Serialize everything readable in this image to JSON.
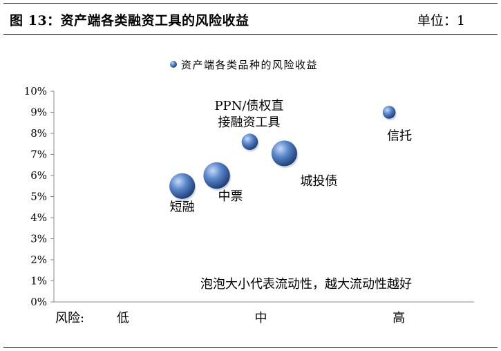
{
  "figure": {
    "title": "图 13：资产端各类融资工具的风险收益",
    "unit": "单位：1"
  },
  "chart_data": {
    "type": "scatter",
    "bubble": true,
    "legend": {
      "entries": [
        "资产端各类品种的风险收益"
      ],
      "placement": "top-center"
    },
    "y_ticks": [
      "0%",
      "1%",
      "2%",
      "3%",
      "4%",
      "5%",
      "6%",
      "7%",
      "8%",
      "9%",
      "10%"
    ],
    "ylim": [
      0,
      10
    ],
    "x_axis_label": "风险:",
    "x_ticks": [
      {
        "label": "低",
        "x": 1
      },
      {
        "label": "中",
        "x": 2
      },
      {
        "label": "高",
        "x": 3
      }
    ],
    "xlim": [
      0.5,
      3.5
    ],
    "grid": false,
    "annotation": "泡泡大小代表流动性，越大流动性越好",
    "points": [
      {
        "name": "短融",
        "x": 1.43,
        "y": 5.5,
        "size": 3.0
      },
      {
        "name": "中票",
        "x": 1.68,
        "y": 6.0,
        "size": 3.1
      },
      {
        "name": "PPN/债权直接融资工具",
        "label_lines": [
          "PPN/债权直",
          "接融资工具"
        ],
        "x": 1.92,
        "y": 7.6,
        "size": 1.9
      },
      {
        "name": "城投债",
        "x": 2.17,
        "y": 7.05,
        "size": 3.0
      },
      {
        "name": "信托",
        "x": 2.93,
        "y": 9.0,
        "size": 1.5
      }
    ],
    "colors": {
      "bubble_light": "#a9c3ea",
      "bubble_mid": "#4f7fc6",
      "bubble_dark": "#1f3f78"
    }
  }
}
